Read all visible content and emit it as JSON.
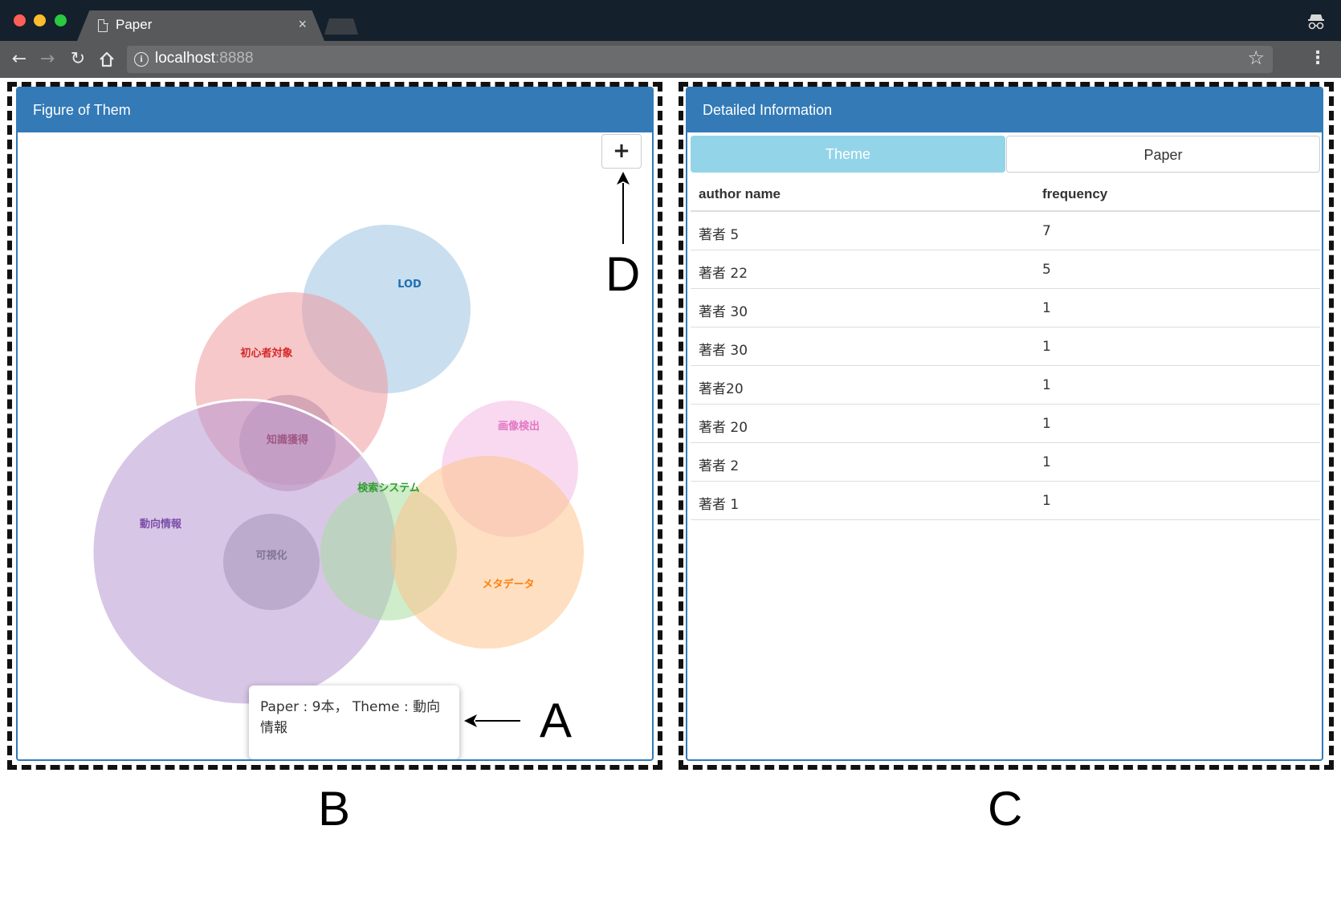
{
  "browser": {
    "tab_title": "Paper",
    "tab_close": "×",
    "url_host": "localhost",
    "url_port": ":8888"
  },
  "left_panel": {
    "title": "Figure of Them",
    "zoom_button": "+",
    "tooltip_text": "Paper : 9本， Theme : 動向情報"
  },
  "chart_data": {
    "type": "bubble",
    "bubbles": [
      {
        "label": "LOD",
        "color": "#9dc2e2",
        "label_color": "#1f6fb0"
      },
      {
        "label": "初心者対象",
        "color": "#ef9a9e",
        "label_color": "#d62728"
      },
      {
        "label": "知識獲得",
        "color": "#b98aa6",
        "label_color": "#a05a86"
      },
      {
        "label": "動向情報",
        "color": "#b898d2",
        "label_color": "#7b4fa8"
      },
      {
        "label": "可視化",
        "color": "#a596b8",
        "label_color": "#7f7591"
      },
      {
        "label": "検索システム",
        "color": "#a8dca0",
        "label_color": "#2ca02c"
      },
      {
        "label": "画像検出",
        "color": "#f2b9e3",
        "label_color": "#e377c2"
      },
      {
        "label": "メタデータ",
        "color": "#fdc48e",
        "label_color": "#ff7f0e"
      }
    ]
  },
  "right_panel": {
    "title": "Detailed Information",
    "tabs": [
      {
        "label": "Theme",
        "active": true
      },
      {
        "label": "Paper",
        "active": false
      }
    ],
    "columns": [
      "author name",
      "frequency"
    ],
    "rows": [
      {
        "author": "著者 5",
        "frequency": "7"
      },
      {
        "author": "著者 22",
        "frequency": "5"
      },
      {
        "author": "著者 30",
        "frequency": "1"
      },
      {
        "author": "著者 30",
        "frequency": "1"
      },
      {
        "author": "著者20",
        "frequency": "1"
      },
      {
        "author": "著者 20",
        "frequency": "1"
      },
      {
        "author": "著者 2",
        "frequency": "1"
      },
      {
        "author": "著者 1",
        "frequency": "1"
      }
    ]
  },
  "annotations": {
    "a": "A",
    "b": "B",
    "c": "C",
    "d": "D"
  }
}
